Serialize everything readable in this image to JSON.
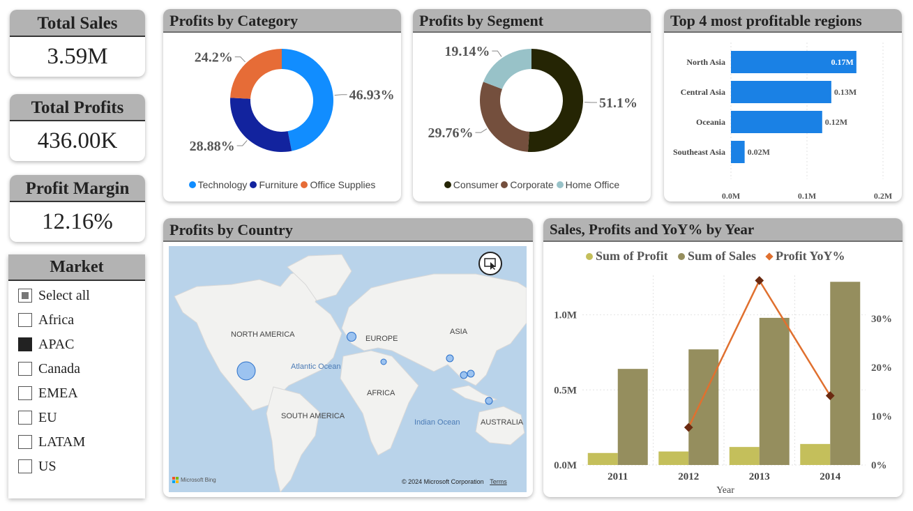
{
  "kpis": {
    "total_sales": {
      "label": "Total Sales",
      "value": "3.59M"
    },
    "total_profits": {
      "label": "Total Profits",
      "value": "436.00K"
    },
    "profit_margin": {
      "label": "Profit Margin",
      "value": "12.16%"
    }
  },
  "market_slicer": {
    "title": "Market",
    "items": [
      {
        "label": "Select all",
        "state": "partial"
      },
      {
        "label": "Africa",
        "state": "unchecked"
      },
      {
        "label": "APAC",
        "state": "checked"
      },
      {
        "label": "Canada",
        "state": "unchecked"
      },
      {
        "label": "EMEA",
        "state": "unchecked"
      },
      {
        "label": "EU",
        "state": "unchecked"
      },
      {
        "label": "LATAM",
        "state": "unchecked"
      },
      {
        "label": "US",
        "state": "unchecked"
      }
    ]
  },
  "map": {
    "title": "Profits by Country",
    "labels": {
      "north_america": "NORTH AMERICA",
      "europe": "EUROPE",
      "asia": "ASIA",
      "africa": "AFRICA",
      "south_america": "SOUTH AMERICA",
      "australia": "AUSTRALIA",
      "atlantic": "Atlantic Ocean",
      "indian": "Indian Ocean"
    },
    "attribution": "Microsoft Bing",
    "copyright": "© 2024 Microsoft Corporation",
    "terms": "Terms",
    "bubble_color": "#8dbbf0"
  },
  "chart_data": [
    {
      "id": "category",
      "type": "pie",
      "title": "Profits by Category",
      "labels": [
        "Technology",
        "Furniture",
        "Office Supplies"
      ],
      "values": [
        46.93,
        28.88,
        24.2
      ],
      "value_labels": [
        "46.93%",
        "28.88%",
        "24.2%"
      ],
      "colors": [
        "#118dff",
        "#12239e",
        "#e66c37"
      ],
      "legend": "bottom"
    },
    {
      "id": "segment",
      "type": "pie",
      "title": "Profits by Segment",
      "labels": [
        "Consumer",
        "Corporate",
        "Home Office"
      ],
      "values": [
        51.1,
        29.76,
        19.14
      ],
      "value_labels": [
        "51.1%",
        "29.76%",
        "19.14%"
      ],
      "colors": [
        "#252504",
        "#744f3d",
        "#98c2c8"
      ],
      "legend": "bottom"
    },
    {
      "id": "regions",
      "type": "bar",
      "orientation": "horizontal",
      "title": "Top 4 most profitable regions",
      "categories": [
        "North Asia",
        "Central Asia",
        "Oceania",
        "Southeast Asia"
      ],
      "values": [
        0.165,
        0.132,
        0.12,
        0.018
      ],
      "value_labels": [
        "0.17M",
        "0.13M",
        "0.12M",
        "0.02M"
      ],
      "xlim": [
        0,
        0.2
      ],
      "xticks": [
        "0.0M",
        "0.1M",
        "0.2M"
      ],
      "xtick_values": [
        0,
        0.1,
        0.2
      ],
      "color": "#1a81e5",
      "grid": true
    },
    {
      "id": "yearly",
      "type": "bar",
      "title": "Sales, Profits and YoY% by Year",
      "categories": [
        "2011",
        "2012",
        "2013",
        "2014"
      ],
      "xlabel": "Year",
      "series": [
        {
          "name": "Sum of Profit",
          "type": "bar",
          "values": [
            0.08,
            0.09,
            0.12,
            0.14
          ],
          "color": "#c4bf5b"
        },
        {
          "name": "Sum of Sales",
          "type": "bar",
          "values": [
            0.64,
            0.77,
            0.98,
            1.22
          ],
          "color": "#958e5e"
        },
        {
          "name": "Profit YoY%",
          "type": "line",
          "axis": "right",
          "values": [
            null,
            7.7,
            37.8,
            14.2
          ],
          "color": "#e0702f"
        }
      ],
      "ylim": [
        0,
        1.3
      ],
      "yticks": [
        "0.0M",
        "0.5M",
        "1.0M"
      ],
      "ytick_values": [
        0,
        0.5,
        1.0
      ],
      "y2lim": [
        0,
        40
      ],
      "y2ticks": [
        "0%",
        "10%",
        "20%",
        "30%"
      ],
      "y2tick_values": [
        0,
        10,
        20,
        30
      ],
      "legend": "top",
      "grid": true
    }
  ]
}
